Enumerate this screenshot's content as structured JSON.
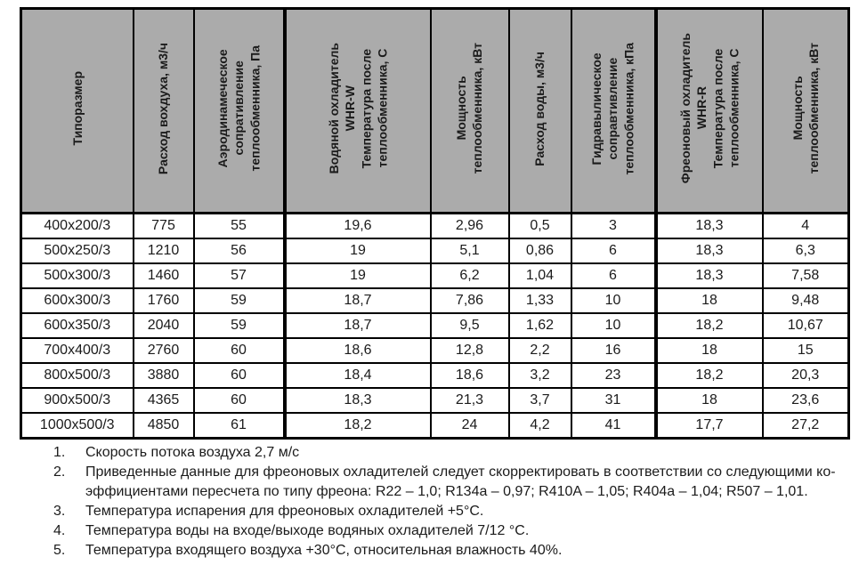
{
  "table": {
    "columns": [
      {
        "label": "Типоразмер",
        "group_end": false
      },
      {
        "label": "Расход вохдуха, м3/ч",
        "group_end": false
      },
      {
        "label": "Аэродинамеческое\nсопративление\nтеплообменника, Па",
        "group_end": true
      },
      {
        "label": "Водяной охладитель\nWHR-W\nТемпература после\nтеплообменника, С",
        "group_end": false
      },
      {
        "label": "Мощность\nтеплообменника, кВт",
        "group_end": false
      },
      {
        "label": "Расход воды, м3/ч",
        "group_end": false
      },
      {
        "label": "Гидравылическое\nсоправтивление\nтеплообменника, кПа",
        "group_end": true
      },
      {
        "label": "Фреоновый охладитель\nWHR-R\nТемпература после\nтеплообменника, С",
        "group_end": false
      },
      {
        "label": "Мощность\nтеплообменника, кВт",
        "group_end": false
      }
    ],
    "group_end_col_indexes": [
      2,
      6
    ],
    "rows": [
      [
        "400x200/3",
        "775",
        "55",
        "19,6",
        "2,96",
        "0,5",
        "3",
        "18,3",
        "4"
      ],
      [
        "500x250/3",
        "1210",
        "56",
        "19",
        "5,1",
        "0,86",
        "6",
        "18,3",
        "6,3"
      ],
      [
        "500x300/3",
        "1460",
        "57",
        "19",
        "6,2",
        "1,04",
        "6",
        "18,3",
        "7,58"
      ],
      [
        "600x300/3",
        "1760",
        "59",
        "18,7",
        "7,86",
        "1,33",
        "10",
        "18",
        "9,48"
      ],
      [
        "600x350/3",
        "2040",
        "59",
        "18,7",
        "9,5",
        "1,62",
        "10",
        "18,2",
        "10,67"
      ],
      [
        "700x400/3",
        "2760",
        "60",
        "18,6",
        "12,8",
        "2,2",
        "16",
        "18",
        "15"
      ],
      [
        "800x500/3",
        "3880",
        "60",
        "18,4",
        "18,6",
        "3,2",
        "23",
        "18,2",
        "20,3"
      ],
      [
        "900x500/3",
        "4365",
        "60",
        "18,3",
        "21,3",
        "3,7",
        "31",
        "18",
        "23,6"
      ],
      [
        "1000x500/3",
        "4850",
        "61",
        "18,2",
        "24",
        "4,2",
        "41",
        "17,7",
        "27,2"
      ]
    ]
  },
  "footnotes": [
    {
      "num": "1.",
      "text": "Скорость потока воздуха 2,7 м/с"
    },
    {
      "num": "2.",
      "text": "Приведенные данные для фреоновых охладителей следует скорректировать в соответствии со следующими ко-\nэффициентами пересчета по типу фреона: R22 – 1,0; R134a – 0,97; R410A – 1,05; R404a – 1,04; R507 – 1,01."
    },
    {
      "num": "3.",
      "text": "Температура испарения для фреоновых охладителей +5°С."
    },
    {
      "num": "4.",
      "text": "Температура воды на входе/выходе водяных охладителей 7/12 °С."
    },
    {
      "num": "5.",
      "text": "Температура входящего воздуха +30°С, относительная влажность 40%."
    }
  ],
  "colors": {
    "header_bg": "#ababab",
    "border": "#000000",
    "text": "#1b1b1b"
  }
}
